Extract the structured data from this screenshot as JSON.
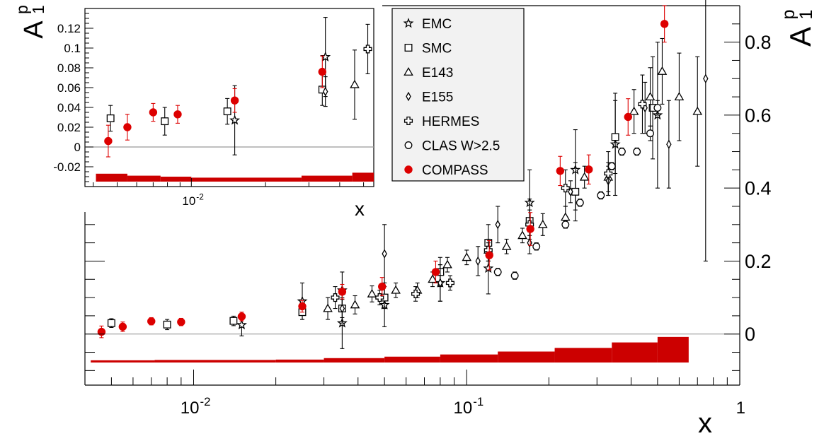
{
  "chart_data": [
    {
      "type": "scatter",
      "panel": "main",
      "xlabel": "x",
      "ylabel_main": "A",
      "ylabel_sup": "p",
      "ylabel_sub": "1",
      "x_scale": "log",
      "xlim": [
        0.004,
        1
      ],
      "ylim": [
        -0.14,
        0.9
      ],
      "x_ticklabels": [
        {
          "value": 0.01,
          "base": "10",
          "exp": "-2"
        },
        {
          "value": 0.1,
          "base": "10",
          "exp": "-1"
        },
        {
          "value": 1,
          "base": "1",
          "exp": ""
        }
      ],
      "y_ticklabels": [
        {
          "value": 0,
          "label": "0"
        },
        {
          "value": 0.2,
          "label": "0.2"
        },
        {
          "value": 0.4,
          "label": "0.4"
        },
        {
          "value": 0.6,
          "label": "0.6"
        },
        {
          "value": 0.8,
          "label": "0.8"
        }
      ],
      "zero_line": true,
      "legend": {
        "placement": "top-center",
        "entries": [
          {
            "marker": "star",
            "label": "EMC"
          },
          {
            "marker": "square",
            "label": "SMC"
          },
          {
            "marker": "triangle",
            "label": "E143"
          },
          {
            "marker": "diamond",
            "label": "E155"
          },
          {
            "marker": "cross",
            "label": "HERMES"
          },
          {
            "marker": "circle",
            "label": "CLAS W>2.5"
          },
          {
            "marker": "dot",
            "label": "COMPASS",
            "color": "#dd0000"
          }
        ]
      },
      "series": [
        {
          "name": "EMC",
          "marker": "star",
          "color": "#000000",
          "points": [
            [
              0.015,
              0.025,
              0.03
            ],
            [
              0.025,
              0.09,
              0.05
            ],
            [
              0.035,
              0.03,
              0.07
            ],
            [
              0.035,
              0.12,
              0.05
            ],
            [
              0.05,
              0.08,
              0.06
            ],
            [
              0.08,
              0.14,
              0.05
            ],
            [
              0.12,
              0.18,
              0.07
            ],
            [
              0.17,
              0.36,
              0.09
            ],
            [
              0.25,
              0.45,
              0.11
            ],
            [
              0.35,
              0.52,
              0.14
            ],
            [
              0.5,
              0.6,
              0.2
            ]
          ]
        },
        {
          "name": "SMC",
          "marker": "square",
          "color": "#000000",
          "points": [
            [
              0.005,
              0.03,
              0.012
            ],
            [
              0.008,
              0.026,
              0.014
            ],
            [
              0.014,
              0.036,
              0.013
            ],
            [
              0.025,
              0.06,
              0.02
            ],
            [
              0.035,
              0.07,
              0.025
            ],
            [
              0.05,
              0.1,
              0.03
            ],
            [
              0.08,
              0.17,
              0.04
            ],
            [
              0.12,
              0.25,
              0.05
            ],
            [
              0.17,
              0.31,
              0.06
            ],
            [
              0.25,
              0.39,
              0.08
            ],
            [
              0.35,
              0.54,
              0.1
            ],
            [
              0.48,
              0.62,
              0.14
            ]
          ]
        },
        {
          "name": "E143",
          "marker": "triangle",
          "color": "#000000",
          "points": [
            [
              0.031,
              0.07,
              0.03
            ],
            [
              0.039,
              0.08,
              0.025
            ],
            [
              0.045,
              0.11,
              0.022
            ],
            [
              0.055,
              0.12,
              0.02
            ],
            [
              0.066,
              0.12,
              0.02
            ],
            [
              0.075,
              0.15,
              0.02
            ],
            [
              0.085,
              0.19,
              0.02
            ],
            [
              0.1,
              0.21,
              0.02
            ],
            [
              0.12,
              0.23,
              0.02
            ],
            [
              0.14,
              0.24,
              0.02
            ],
            [
              0.16,
              0.27,
              0.02
            ],
            [
              0.19,
              0.3,
              0.03
            ],
            [
              0.23,
              0.32,
              0.03
            ],
            [
              0.27,
              0.43,
              0.03
            ],
            [
              0.33,
              0.43,
              0.04
            ],
            [
              0.41,
              0.61,
              0.06
            ],
            [
              0.47,
              0.65,
              0.08
            ],
            [
              0.52,
              0.72,
              0.09
            ],
            [
              0.6,
              0.65,
              0.12
            ],
            [
              0.7,
              0.61,
              0.15
            ]
          ]
        },
        {
          "name": "E155",
          "marker": "diamond",
          "color": "#000000",
          "points": [
            [
              0.035,
              0.07,
              0.04
            ],
            [
              0.05,
              0.22,
              0.08
            ],
            [
              0.08,
              0.14,
              0.05
            ],
            [
              0.11,
              0.2,
              0.04
            ],
            [
              0.13,
              0.3,
              0.05
            ],
            [
              0.17,
              0.25,
              0.03
            ],
            [
              0.24,
              0.39,
              0.03
            ],
            [
              0.33,
              0.42,
              0.04
            ],
            [
              0.45,
              0.62,
              0.07
            ],
            [
              0.55,
              0.52,
              0.12
            ],
            [
              0.75,
              0.7,
              0.5
            ]
          ]
        },
        {
          "name": "HERMES",
          "marker": "cross",
          "color": "#000000",
          "points": [
            [
              0.033,
              0.1,
              0.03
            ],
            [
              0.048,
              0.1,
              0.02
            ],
            [
              0.065,
              0.11,
              0.02
            ],
            [
              0.087,
              0.14,
              0.02
            ],
            [
              0.12,
              0.23,
              0.03
            ],
            [
              0.17,
              0.3,
              0.04
            ],
            [
              0.23,
              0.4,
              0.05
            ],
            [
              0.33,
              0.44,
              0.06
            ],
            [
              0.44,
              0.63,
              0.08
            ]
          ]
        },
        {
          "name": "CLAS W>2.5",
          "marker": "circle",
          "color": "#000000",
          "points": [
            [
              0.13,
              0.17,
              0.01
            ],
            [
              0.15,
              0.16,
              0.01
            ],
            [
              0.18,
              0.24,
              0.01
            ],
            [
              0.23,
              0.3,
              0.01
            ],
            [
              0.26,
              0.36,
              0.01
            ],
            [
              0.31,
              0.38,
              0.01
            ],
            [
              0.34,
              0.46,
              0.01
            ],
            [
              0.37,
              0.5,
              0.01
            ],
            [
              0.42,
              0.5,
              0.01
            ],
            [
              0.47,
              0.55,
              0.02
            ],
            [
              0.5,
              0.62,
              0.02
            ]
          ]
        },
        {
          "name": "COMPASS",
          "marker": "dot",
          "color": "#dd0000",
          "points": [
            [
              0.0046,
              0.006,
              0.016
            ],
            [
              0.0055,
              0.02,
              0.013
            ],
            [
              0.007,
              0.035,
              0.01
            ],
            [
              0.009,
              0.033,
              0.01
            ],
            [
              0.015,
              0.048,
              0.012
            ],
            [
              0.025,
              0.076,
              0.016
            ],
            [
              0.035,
              0.116,
              0.02
            ],
            [
              0.049,
              0.13,
              0.025
            ],
            [
              0.077,
              0.17,
              0.03
            ],
            [
              0.121,
              0.216,
              0.04
            ],
            [
              0.171,
              0.288,
              0.045
            ],
            [
              0.22,
              0.447,
              0.04
            ],
            [
              0.28,
              0.451,
              0.04
            ],
            [
              0.39,
              0.595,
              0.05
            ],
            [
              0.53,
              0.85,
              0.05
            ]
          ]
        }
      ],
      "systematic_band": {
        "color": "#cc0000",
        "baseline": -0.078,
        "bins": [
          [
            0.0042,
            0.0072,
            0.006
          ],
          [
            0.0072,
            0.02,
            0.007
          ],
          [
            0.02,
            0.03,
            0.008
          ],
          [
            0.03,
            0.05,
            0.012
          ],
          [
            0.05,
            0.08,
            0.016
          ],
          [
            0.08,
            0.13,
            0.022
          ],
          [
            0.13,
            0.21,
            0.03
          ],
          [
            0.21,
            0.34,
            0.04
          ],
          [
            0.34,
            0.5,
            0.055
          ],
          [
            0.5,
            0.65,
            0.07
          ]
        ]
      }
    },
    {
      "type": "scatter",
      "panel": "inset",
      "xlabel": "x",
      "ylabel_main": "A",
      "ylabel_sup": "p",
      "ylabel_sub": "1",
      "x_scale": "log",
      "xlim": [
        0.0037,
        0.055
      ],
      "ylim": [
        -0.04,
        0.14
      ],
      "x_ticklabels": [
        {
          "value": 0.01,
          "base": "10",
          "exp": "-2"
        }
      ],
      "y_ticklabels": [
        {
          "value": -0.02,
          "label": "-0.02"
        },
        {
          "value": 0,
          "label": "0"
        },
        {
          "value": 0.02,
          "label": "0.02"
        },
        {
          "value": 0.04,
          "label": "0.04"
        },
        {
          "value": 0.06,
          "label": "0.06"
        },
        {
          "value": 0.08,
          "label": "0.08"
        },
        {
          "value": 0.1,
          "label": "0.1"
        },
        {
          "value": 0.12,
          "label": "0.12"
        }
      ],
      "zero_line": true,
      "series": [
        {
          "name": "EMC",
          "marker": "star",
          "color": "#000000",
          "points": [
            [
              0.015,
              0.027,
              0.035
            ],
            [
              0.035,
              0.091,
              0.04
            ]
          ]
        },
        {
          "name": "SMC",
          "marker": "square",
          "color": "#000000",
          "points": [
            [
              0.0047,
              0.029,
              0.013
            ],
            [
              0.0078,
              0.026,
              0.014
            ],
            [
              0.014,
              0.036,
              0.013
            ],
            [
              0.034,
              0.058,
              0.016
            ]
          ]
        },
        {
          "name": "E143",
          "marker": "triangle",
          "color": "#000000",
          "points": [
            [
              0.046,
              0.063,
              0.035
            ]
          ]
        },
        {
          "name": "E155",
          "marker": "diamond",
          "color": "#000000",
          "points": [
            [
              0.035,
              0.056,
              0.015
            ]
          ]
        },
        {
          "name": "HERMES",
          "marker": "cross",
          "color": "#000000",
          "points": [
            [
              0.052,
              0.099,
              0.025
            ]
          ]
        },
        {
          "name": "COMPASS",
          "marker": "dot",
          "color": "#dd0000",
          "points": [
            [
              0.0046,
              0.006,
              0.016
            ],
            [
              0.0055,
              0.02,
              0.013
            ],
            [
              0.007,
              0.035,
              0.009
            ],
            [
              0.0088,
              0.033,
              0.009
            ],
            [
              0.015,
              0.047,
              0.012
            ],
            [
              0.034,
              0.076,
              0.016
            ]
          ]
        }
      ],
      "systematic_band": {
        "color": "#cc0000",
        "baseline": -0.035,
        "bins": [
          [
            0.0041,
            0.0055,
            0.008
          ],
          [
            0.0055,
            0.0075,
            0.006
          ],
          [
            0.0075,
            0.01,
            0.005
          ],
          [
            0.01,
            0.028,
            0.004
          ],
          [
            0.028,
            0.045,
            0.006
          ],
          [
            0.045,
            0.055,
            0.009
          ]
        ]
      }
    }
  ]
}
